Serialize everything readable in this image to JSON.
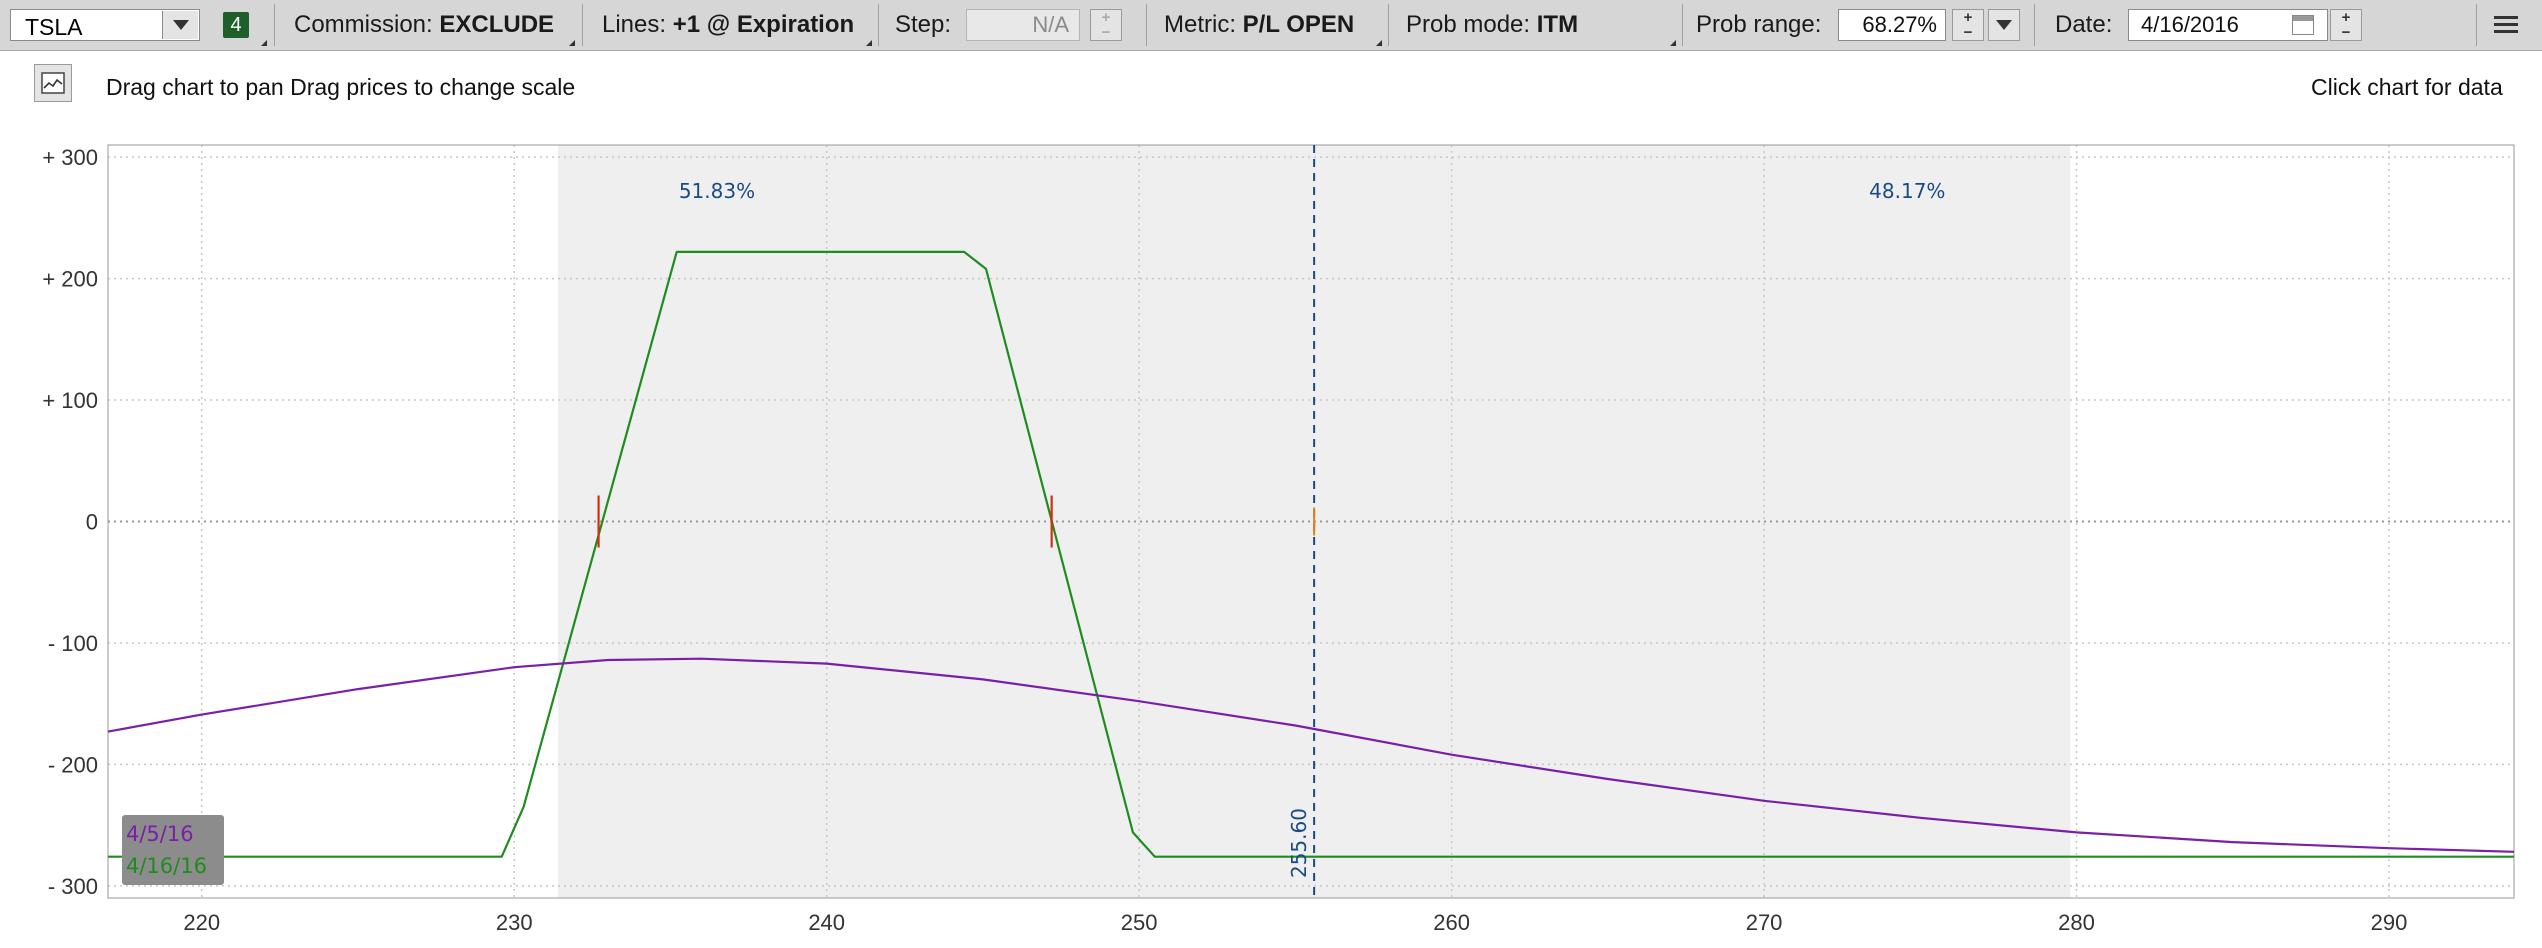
{
  "toolbar": {
    "symbol": "TSLA",
    "badge": "4",
    "commission_label": "Commission:",
    "commission_value": "EXCLUDE",
    "lines_label": "Lines:",
    "lines_value": "+1 @ Expiration",
    "step_label": "Step:",
    "step_value": "N/A",
    "metric_label": "Metric:",
    "metric_value": "P/L OPEN",
    "prob_mode_label": "Prob mode:",
    "prob_mode_value": "ITM",
    "prob_range_label": "Prob range:",
    "prob_range_value": "68.27%",
    "date_label": "Date:",
    "date_value": "4/16/2016"
  },
  "info": {
    "instructions": "Drag chart to pan Drag prices to change scale",
    "click_hint": "Click chart for data"
  },
  "colors": {
    "expiration_line": "#1e8c1e",
    "today_line": "#7a1fa8",
    "probability_shade": "#efefef",
    "current_price_line": "#1a4b86",
    "breakeven_marker": "#d03010"
  },
  "chart_data": {
    "type": "line",
    "x_ticks": [
      220,
      230,
      240,
      250,
      260,
      270,
      280,
      290
    ],
    "y_ticks": [
      300,
      200,
      100,
      0,
      -100,
      -200,
      -300
    ],
    "y_tick_labels": [
      "+ 300",
      "+ 200",
      "+ 100",
      "0",
      "- 100",
      "- 200",
      "- 300"
    ],
    "xlim": [
      217,
      294
    ],
    "ylim": [
      -310,
      310
    ],
    "grid": true,
    "probability_range": {
      "x": [
        231.4,
        279.8
      ],
      "left_label": "51.83%",
      "right_label": "48.17%"
    },
    "current_price": {
      "value": 255.6,
      "label": "255.60"
    },
    "breakevens": [
      232.7,
      247.2
    ],
    "series": [
      {
        "name": "4/16/16",
        "x": [
          217,
          229.6,
          230.3,
          235.2,
          244.4,
          245.1,
          249.8,
          250.5,
          294
        ],
        "y": [
          -276,
          -276,
          -235,
          222,
          222,
          208,
          -256,
          -276,
          -276
        ]
      },
      {
        "name": "4/5/16",
        "x": [
          217,
          220,
          225,
          230,
          233,
          236,
          240,
          245,
          250,
          255,
          260,
          265,
          270,
          275,
          280,
          285,
          290,
          294
        ],
        "y": [
          -173,
          -159,
          -138,
          -120,
          -114,
          -113,
          -117,
          -130,
          -148,
          -168,
          -192,
          -212,
          -230,
          -244,
          -256,
          -264,
          -269,
          -272
        ]
      }
    ]
  }
}
